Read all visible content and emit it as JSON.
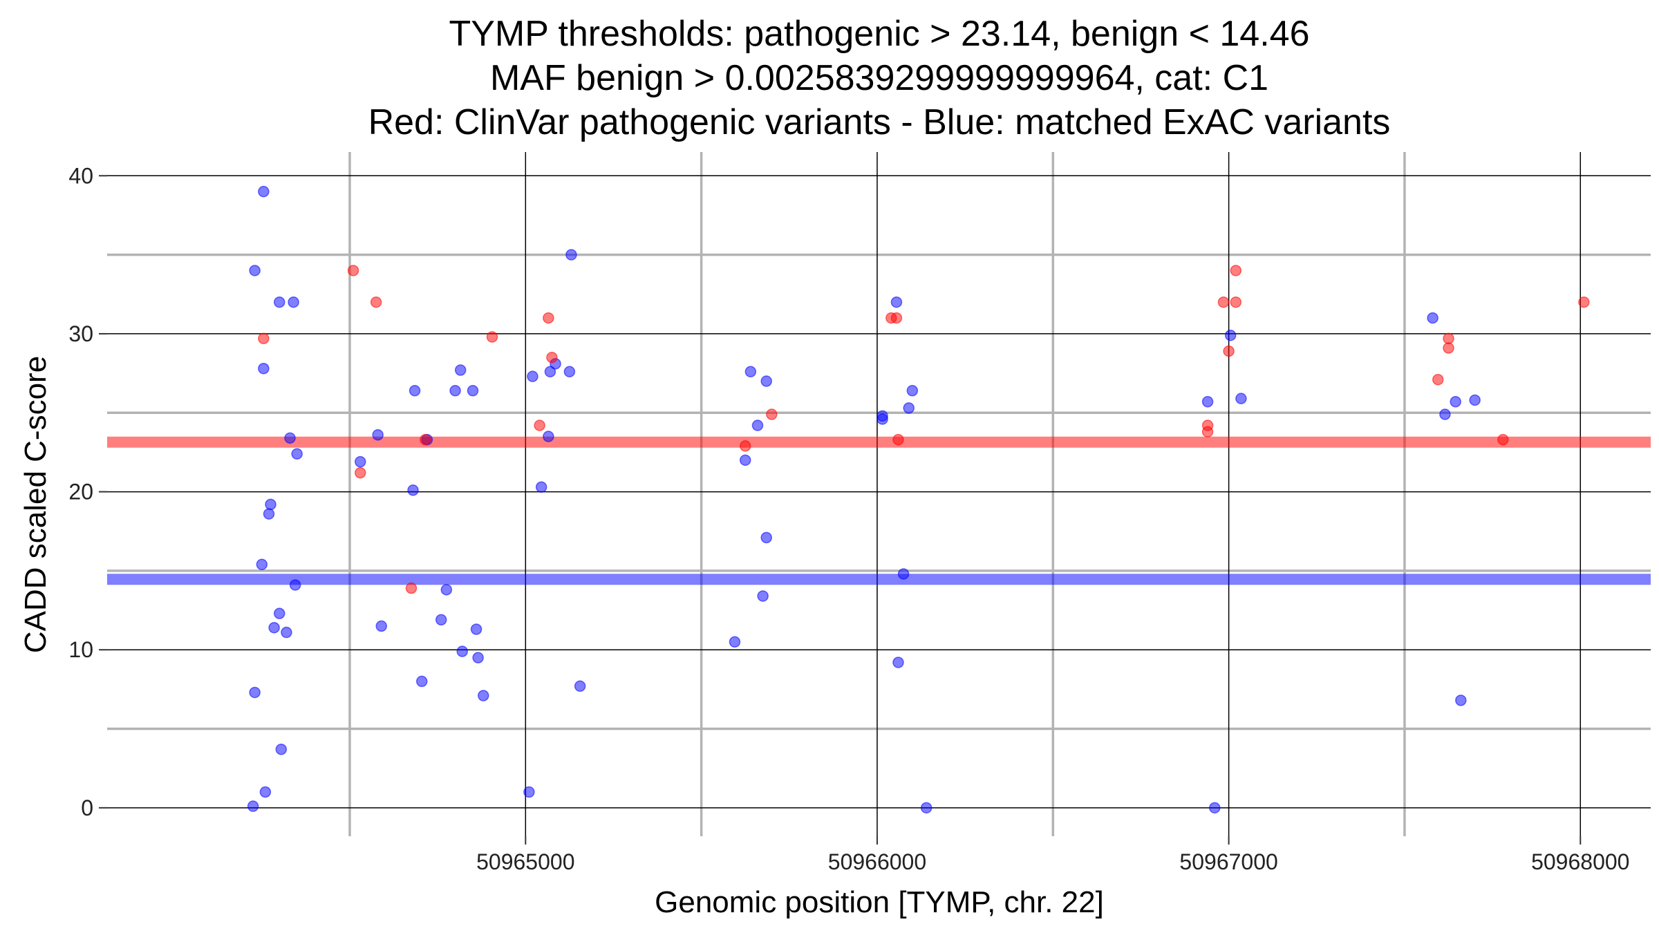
{
  "chart_data": {
    "type": "scatter",
    "title_lines": [
      "TYMP thresholds: pathogenic > 23.14, benign < 14.46",
      "MAF benign > 0.0025839299999999964, cat: C1",
      "Red: ClinVar pathogenic variants - Blue: matched ExAC variants"
    ],
    "xlabel": "Genomic position [TYMP, chr. 22]",
    "ylabel": "CADD scaled C-score",
    "xlim": [
      50963810,
      50968200
    ],
    "ylim": [
      -1.8,
      41.5
    ],
    "x_ticks": [
      50965000,
      50966000,
      50967000,
      50968000
    ],
    "x_tick_labels": [
      "50965000",
      "50966000",
      "50967000",
      "50968000"
    ],
    "x_minor_ticks": [
      50964500,
      50965500,
      50966500,
      50967500
    ],
    "y_ticks": [
      0,
      10,
      20,
      30,
      40
    ],
    "y_tick_labels": [
      "0",
      "10",
      "20",
      "30",
      "40"
    ],
    "y_minor_ticks": [
      5,
      15,
      25,
      35
    ],
    "grid": true,
    "colors": {
      "pathogenic": "#ff0000",
      "benign": "#0000ff",
      "major_grid": "#000000",
      "minor_grid": "#b3b3b3"
    },
    "thresholds": {
      "pathogenic": 23.14,
      "benign": 14.46
    },
    "series": [
      {
        "color": "#ff0000",
        "points": [
          [
            50964255,
            29.7
          ],
          [
            50964510,
            34.0
          ],
          [
            50964530,
            21.2
          ],
          [
            50964575,
            32.0
          ],
          [
            50964675,
            13.9
          ],
          [
            50964715,
            23.3
          ],
          [
            50964905,
            29.8
          ],
          [
            50965040,
            24.2
          ],
          [
            50965065,
            31.0
          ],
          [
            50965075,
            28.5
          ],
          [
            50965700,
            24.9
          ],
          [
            50965625,
            22.9
          ],
          [
            50966040,
            31.0
          ],
          [
            50966055,
            31.0
          ],
          [
            50966060,
            23.3
          ],
          [
            50966940,
            23.8
          ],
          [
            50966940,
            24.2
          ],
          [
            50966985,
            32.0
          ],
          [
            50967000,
            28.9
          ],
          [
            50967020,
            32.0
          ],
          [
            50967020,
            34.0
          ],
          [
            50967595,
            27.1
          ],
          [
            50967625,
            29.7
          ],
          [
            50967625,
            29.1
          ],
          [
            50967780,
            23.3
          ],
          [
            50968010,
            32.0
          ]
        ],
        "name": ""
      },
      {
        "color": "#0000ff",
        "points": [
          [
            50964225,
            0.1
          ],
          [
            50964230,
            7.3
          ],
          [
            50964230,
            34.0
          ],
          [
            50964255,
            39.0
          ],
          [
            50964255,
            27.8
          ],
          [
            50964250,
            15.4
          ],
          [
            50964260,
            1.0
          ],
          [
            50964275,
            19.2
          ],
          [
            50964270,
            18.6
          ],
          [
            50964285,
            11.4
          ],
          [
            50964300,
            12.3
          ],
          [
            50964300,
            32.0
          ],
          [
            50964305,
            3.7
          ],
          [
            50964320,
            11.1
          ],
          [
            50964330,
            23.4
          ],
          [
            50964340,
            32.0
          ],
          [
            50964345,
            14.1
          ],
          [
            50964350,
            22.4
          ],
          [
            50964530,
            21.9
          ],
          [
            50964580,
            23.6
          ],
          [
            50964590,
            11.5
          ],
          [
            50964680,
            20.1
          ],
          [
            50964685,
            26.4
          ],
          [
            50964705,
            8.0
          ],
          [
            50964720,
            23.3
          ],
          [
            50964760,
            11.9
          ],
          [
            50964775,
            13.8
          ],
          [
            50964800,
            26.4
          ],
          [
            50964815,
            27.7
          ],
          [
            50964820,
            9.9
          ],
          [
            50964850,
            26.4
          ],
          [
            50964860,
            11.3
          ],
          [
            50964865,
            9.5
          ],
          [
            50964880,
            7.1
          ],
          [
            50965010,
            1.0
          ],
          [
            50965020,
            27.3
          ],
          [
            50965045,
            20.3
          ],
          [
            50965065,
            23.5
          ],
          [
            50965070,
            27.6
          ],
          [
            50965085,
            28.1
          ],
          [
            50965125,
            27.6
          ],
          [
            50965130,
            35.0
          ],
          [
            50965155,
            7.7
          ],
          [
            50965595,
            10.5
          ],
          [
            50965625,
            22.0
          ],
          [
            50965640,
            27.6
          ],
          [
            50965660,
            24.2
          ],
          [
            50965675,
            13.4
          ],
          [
            50965685,
            27.0
          ],
          [
            50965685,
            17.1
          ],
          [
            50966015,
            24.6
          ],
          [
            50966015,
            24.8
          ],
          [
            50966055,
            32.0
          ],
          [
            50966060,
            9.2
          ],
          [
            50966075,
            14.8
          ],
          [
            50966090,
            25.3
          ],
          [
            50966100,
            26.4
          ],
          [
            50966140,
            0.0
          ],
          [
            50966940,
            25.7
          ],
          [
            50966960,
            0.0
          ],
          [
            50967005,
            29.9
          ],
          [
            50967035,
            25.9
          ],
          [
            50967580,
            31.0
          ],
          [
            50967615,
            24.9
          ],
          [
            50967645,
            25.7
          ],
          [
            50967660,
            6.8
          ],
          [
            50967700,
            25.8
          ]
        ],
        "name": ""
      }
    ]
  }
}
